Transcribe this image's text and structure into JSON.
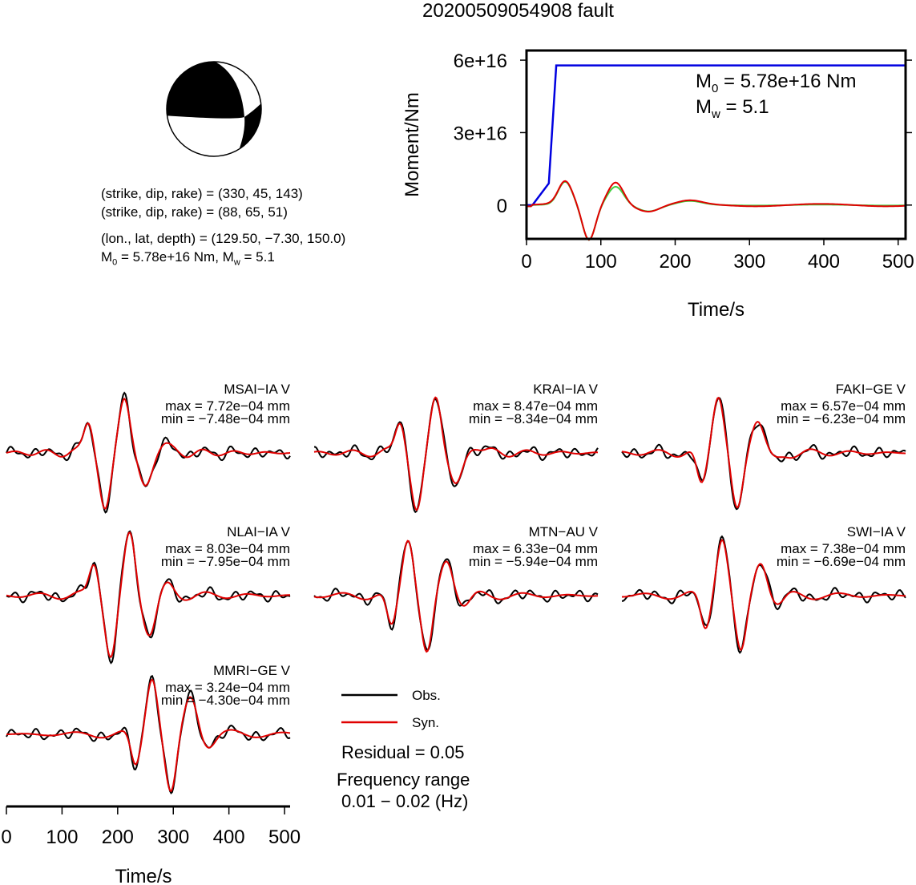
{
  "title": "20200509054908 fault",
  "mechanism": {
    "line1": "(strike, dip, rake) = (330, 45, 143)",
    "line2": "(strike, dip, rake) = (88, 65, 51)",
    "line3": "(lon., lat, depth) = (129.50, −7.30, 150.0)",
    "line4_m0": "M",
    "line4_m0_sub": "0",
    "line4_mid": " = 5.78e+16 Nm, M",
    "line4_mw_sub": "w",
    "line4_end": " = 5.1"
  },
  "colors": {
    "obs": "#000000",
    "syn": "#e00000",
    "stf_moment": "#0000e0",
    "stf_green": "#40d040"
  },
  "chart_data": [
    {
      "type": "line",
      "name": "moment-rate",
      "xlabel": "Time/s",
      "ylabel": "Moment/Nm",
      "xlim": [
        0,
        510
      ],
      "ylim": [
        -1.4e+16,
        6.4e+16
      ],
      "x_ticks": [
        "0",
        "100",
        "200",
        "300",
        "400",
        "500"
      ],
      "y_ticks": [
        "0",
        "3e+16",
        "6e+16"
      ],
      "annotation_m0": "M",
      "annotation_m0_sub": "0",
      "annotation_m0_val": " = 5.78e+16 Nm",
      "annotation_mw": "M",
      "annotation_mw_sub": "w",
      "annotation_mw_val": " = 5.1",
      "cumulative_moment": {
        "x": [
          0,
          8,
          30,
          40,
          510
        ],
        "y": [
          0,
          0,
          9000000000000000.0,
          5.78e+16,
          5.78e+16
        ]
      }
    },
    {
      "type": "line",
      "name": "waveforms",
      "xlabel": "Time/s",
      "xlim": [
        0,
        510
      ],
      "x_ticks": [
        "0",
        "100",
        "200",
        "300",
        "400",
        "500"
      ],
      "stations": [
        {
          "name": "MSAI−IA V",
          "max": "max = 7.72e−04 mm",
          "min": "min = −7.48e−04 mm"
        },
        {
          "name": "KRAI−IA V",
          "max": "max = 8.47e−04 mm",
          "min": "min = −8.34e−04 mm"
        },
        {
          "name": "FAKI−GE V",
          "max": "max = 6.57e−04 mm",
          "min": "min = −6.23e−04 mm"
        },
        {
          "name": "NLAI−IA V",
          "max": "max = 8.03e−04 mm",
          "min": "min = −7.95e−04 mm"
        },
        {
          "name": "MTN−AU V",
          "max": "max = 6.33e−04 mm",
          "min": "min = −5.94e−04 mm"
        },
        {
          "name": "SWI−IA V",
          "max": "max = 7.38e−04 mm",
          "min": "min = −6.69e−04 mm"
        },
        {
          "name": "MMRI−GE V",
          "max": "max = 3.24e−04 mm",
          "min": "min = −4.30e−04 mm"
        }
      ]
    }
  ],
  "legend": {
    "obs": "Obs.",
    "syn": "Syn."
  },
  "residual": "Residual = 0.05",
  "freq_label": "Frequency range",
  "freq_value": "0.01 − 0.02 (Hz)"
}
